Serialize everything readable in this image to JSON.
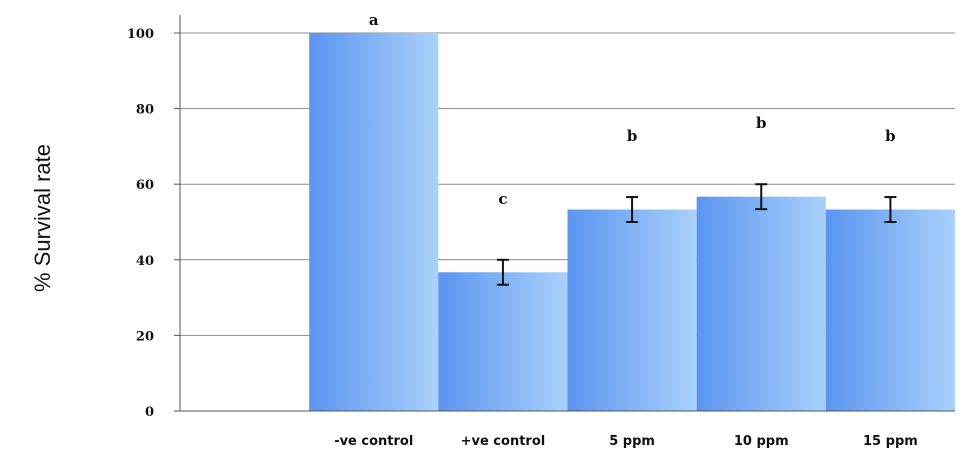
{
  "chart_data": {
    "type": "bar",
    "ylabel": "% Survival rate",
    "xlabel": "",
    "ylim": [
      0,
      100
    ],
    "yticks": [
      "0",
      "20",
      "40",
      "60",
      "80",
      "100"
    ],
    "grid": true,
    "categories": [
      "",
      "-ve control",
      "+ve control",
      "5 ppm",
      "10 ppm",
      "15 ppm"
    ],
    "values": [
      null,
      100,
      36.7,
      53.3,
      56.7,
      53.3
    ],
    "error": [
      null,
      0,
      3.3,
      3.3,
      3.3,
      3.3
    ],
    "significance": [
      "",
      "a",
      "c",
      "b",
      "b",
      "b"
    ],
    "colors": {
      "bar_dark": "#5b95f0",
      "bar_light": "#a9d1fb",
      "grid": "#8a8a8a",
      "axis": "#555555"
    }
  }
}
